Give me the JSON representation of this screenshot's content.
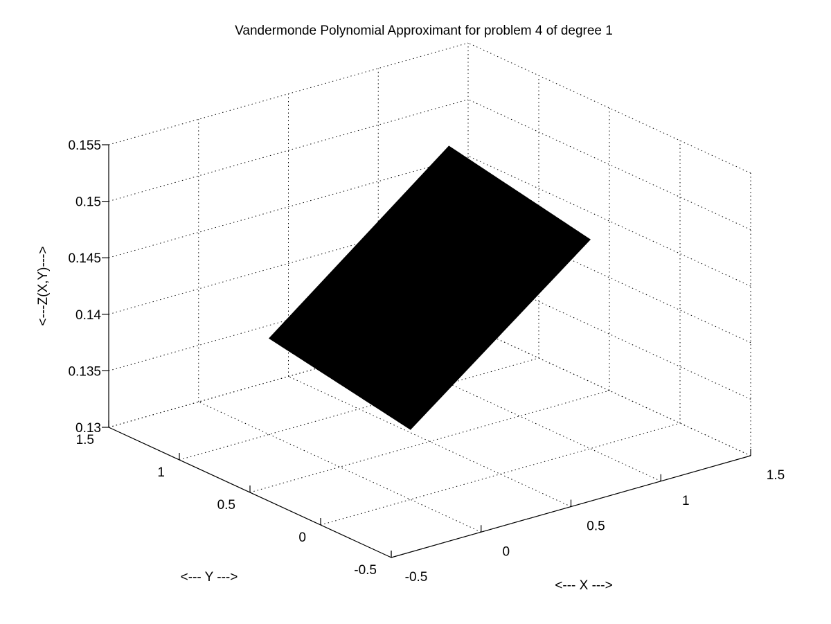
{
  "chart_data": {
    "type": "surface",
    "title": "Vandermonde Polynomial Approximant for problem 4 of degree 1",
    "xlabel": "<--- X --->",
    "ylabel": "<--- Y --->",
    "zlabel": "<---Z(X,Y)--->",
    "xlim": [
      -0.5,
      1.5
    ],
    "ylim": [
      -0.5,
      1.5
    ],
    "zlim": [
      0.13,
      0.155
    ],
    "x_ticks": [
      "-0.5",
      "0",
      "0.5",
      "1",
      "1.5"
    ],
    "y_ticks": [
      "-0.5",
      "0",
      "0.5",
      "1",
      "1.5"
    ],
    "z_ticks": [
      "0.13",
      "0.135",
      "0.14",
      "0.145",
      "0.15",
      "0.155"
    ],
    "x_tick_values": [
      -0.5,
      0,
      0.5,
      1,
      1.5
    ],
    "y_tick_values": [
      -0.5,
      0,
      0.5,
      1,
      1.5
    ],
    "z_tick_values": [
      0.13,
      0.135,
      0.14,
      0.145,
      0.15,
      0.155
    ],
    "grid": true,
    "surface_color": "#000000",
    "surface": {
      "x": [
        0,
        1
      ],
      "y": [
        0,
        1
      ],
      "z": [
        [
          0.1362,
          0.1385
        ],
        [
          0.1485,
          0.151
        ]
      ]
    }
  }
}
